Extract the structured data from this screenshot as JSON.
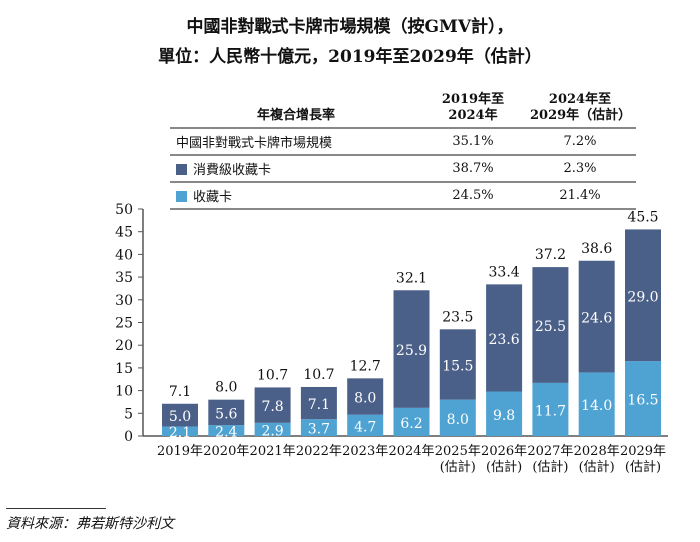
{
  "title_line1": "中國非對戰式卡牌市場規模（按GMV計），",
  "title_line2": "單位：人民幣十億元，2019年至2029年（估計）",
  "cagr_table": {
    "header_label": "年複合增長率",
    "col1": [
      "2019年至",
      "2024年"
    ],
    "col2": [
      "2024年至",
      "2029年（估計）"
    ],
    "rows": [
      {
        "label": "中國非對戰式卡牌市場規模",
        "v1": "35.1%",
        "v2": "7.2%",
        "swatch": ""
      },
      {
        "label": "消費級收藏卡",
        "v1": "38.7%",
        "v2": "2.3%",
        "swatch": "#4b6088"
      },
      {
        "label": "收藏卡",
        "v1": "24.5%",
        "v2": "21.4%",
        "swatch": "#4fa3d3"
      }
    ]
  },
  "chart_data": {
    "type": "bar",
    "stacked": true,
    "categories": [
      [
        "2019年"
      ],
      [
        "2020年"
      ],
      [
        "2021年"
      ],
      [
        "2022年"
      ],
      [
        "2023年"
      ],
      [
        "2024年"
      ],
      [
        "2025年",
        "(估計)"
      ],
      [
        "2026年",
        "(估計)"
      ],
      [
        "2027年",
        "(估計)"
      ],
      [
        "2028年",
        "(估計)"
      ],
      [
        "2029年",
        "(估計)"
      ]
    ],
    "series": [
      {
        "name": "收藏卡",
        "color": "#4fa3d3",
        "values": [
          2.1,
          2.4,
          2.9,
          3.7,
          4.7,
          6.2,
          8.0,
          9.8,
          11.7,
          14.0,
          16.5
        ]
      },
      {
        "name": "消費級收藏卡",
        "color": "#4b6088",
        "values": [
          5.0,
          5.6,
          7.8,
          7.1,
          8.0,
          25.9,
          15.5,
          23.6,
          25.5,
          24.6,
          29.0
        ]
      }
    ],
    "totals": [
      7.1,
      8.0,
      10.7,
      10.7,
      12.7,
      32.1,
      23.5,
      33.4,
      37.2,
      38.6,
      45.5
    ],
    "yticks": [
      0,
      5,
      10,
      15,
      20,
      25,
      30,
      35,
      40,
      45,
      50
    ],
    "ylim": [
      0,
      50
    ],
    "grid": false
  },
  "source": "資料來源：弗若斯特沙利文"
}
